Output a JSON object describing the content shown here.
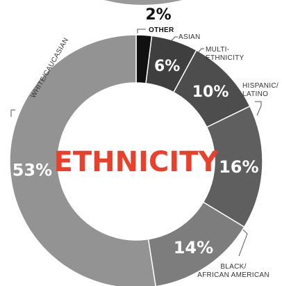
{
  "chart_data": {
    "type": "pie",
    "center_label": "ETHNICITY",
    "slices": [
      {
        "label": "OTHER",
        "value": 2,
        "value_label": "2%",
        "color": "#111111"
      },
      {
        "label": "ASIAN",
        "value": 6,
        "value_label": "6%",
        "color": "#3f3f3f"
      },
      {
        "label": "MULTI-ETHNICITY",
        "value": 10,
        "value_label": "10%",
        "color": "#4d4d4d"
      },
      {
        "label": "HISPANIC/LATINO",
        "value": 16,
        "value_label": "16%",
        "color": "#5f5f5f"
      },
      {
        "label": "BLACK/AFRICAN AMERICAN",
        "value": 14,
        "value_label": "14%",
        "color": "#7d7d7d"
      },
      {
        "label": "WHITE/CAUCASIAN",
        "value": 53,
        "value_label": "53%",
        "color": "#939393"
      }
    ],
    "category_lines": {
      "OTHER": [
        "OTHER"
      ],
      "ASIAN": [
        "ASIAN"
      ],
      "MULTI-ETHNICITY": [
        "MULTI-",
        "ETHNICITY"
      ],
      "HISPANIC/LATINO": [
        "HISPANIC/",
        "LATINO"
      ],
      "BLACK/AFRICAN AMERICAN": [
        "BLACK/",
        "AFRICAN AMERICAN"
      ],
      "WHITE/CAUCASIAN": [
        "WHITE/CAUCASIAN"
      ]
    }
  }
}
